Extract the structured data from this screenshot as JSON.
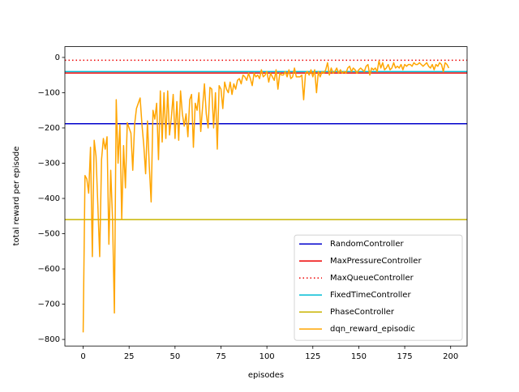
{
  "chart_data": {
    "type": "line",
    "xlabel": "episodes",
    "ylabel": "total reward per episode",
    "xlim": [
      -9.95,
      208.95
    ],
    "ylim": [
      -818.6,
      30.6
    ],
    "xticks": [
      0,
      25,
      50,
      75,
      100,
      125,
      150,
      175,
      200
    ],
    "yticks": [
      {
        "value": -800,
        "label": "−800"
      },
      {
        "value": -700,
        "label": "−700"
      },
      {
        "value": -600,
        "label": "−600"
      },
      {
        "value": -500,
        "label": "−500"
      },
      {
        "value": -400,
        "label": "−400"
      },
      {
        "value": -300,
        "label": "−300"
      },
      {
        "value": -200,
        "label": "−200"
      },
      {
        "value": -100,
        "label": "−100"
      },
      0
    ],
    "legend": "lower right",
    "hlines": [
      {
        "name": "RandomController",
        "color": "#0000cc",
        "y": -188,
        "dash": "solid"
      },
      {
        "name": "MaxPressureController",
        "color": "#ee0000",
        "y": -44,
        "dash": "solid"
      },
      {
        "name": "MaxQueueController",
        "color": "#ee0000",
        "y": -8,
        "dash": "dotted"
      },
      {
        "name": "FixedTimeController",
        "color": "#00bcd4",
        "y": -40,
        "dash": "solid"
      },
      {
        "name": "PhaseController",
        "color": "#c8b400",
        "y": -460,
        "dash": "solid"
      }
    ],
    "x": [
      0,
      1,
      2,
      3,
      4,
      5,
      6,
      7,
      8,
      9,
      10,
      11,
      12,
      13,
      14,
      15,
      16,
      17,
      18,
      19,
      20,
      21,
      22,
      23,
      24,
      25,
      26,
      27,
      28,
      29,
      30,
      31,
      32,
      33,
      34,
      35,
      36,
      37,
      38,
      39,
      40,
      41,
      42,
      43,
      44,
      45,
      46,
      47,
      48,
      49,
      50,
      51,
      52,
      53,
      54,
      55,
      56,
      57,
      58,
      59,
      60,
      61,
      62,
      63,
      64,
      65,
      66,
      67,
      68,
      69,
      70,
      71,
      72,
      73,
      74,
      75,
      76,
      77,
      78,
      79,
      80,
      81,
      82,
      83,
      84,
      85,
      86,
      87,
      88,
      89,
      90,
      91,
      92,
      93,
      94,
      95,
      96,
      97,
      98,
      99,
      100,
      101,
      102,
      103,
      104,
      105,
      106,
      107,
      108,
      109,
      110,
      111,
      112,
      113,
      114,
      115,
      116,
      117,
      118,
      119,
      120,
      121,
      122,
      123,
      124,
      125,
      126,
      127,
      128,
      129,
      130,
      131,
      132,
      133,
      134,
      135,
      136,
      137,
      138,
      139,
      140,
      141,
      142,
      143,
      144,
      145,
      146,
      147,
      148,
      149,
      150,
      151,
      152,
      153,
      154,
      155,
      156,
      157,
      158,
      159,
      160,
      161,
      162,
      163,
      164,
      165,
      166,
      167,
      168,
      169,
      170,
      171,
      172,
      173,
      174,
      175,
      176,
      177,
      178,
      179,
      180,
      181,
      182,
      183,
      184,
      185,
      186,
      187,
      188,
      189,
      190,
      191,
      192,
      193,
      194,
      195,
      196,
      197,
      198,
      199
    ],
    "series": [
      {
        "name": "dqn_reward_episodic",
        "color": "#ffa500",
        "values": [
          -780,
          -335,
          -345,
          -385,
          -255,
          -565,
          -235,
          -280,
          -420,
          -565,
          -290,
          -230,
          -260,
          -225,
          -530,
          -320,
          -460,
          -725,
          -120,
          -300,
          -190,
          -460,
          -250,
          -370,
          -185,
          -200,
          -215,
          -320,
          -190,
          -145,
          -130,
          -115,
          -190,
          -250,
          -330,
          -180,
          -310,
          -410,
          -150,
          -175,
          -130,
          -290,
          -95,
          -240,
          -100,
          -230,
          -95,
          -220,
          -170,
          -105,
          -230,
          -125,
          -235,
          -95,
          -160,
          -195,
          -160,
          -225,
          -120,
          -105,
          -255,
          -130,
          -150,
          -100,
          -210,
          -140,
          -75,
          -160,
          -200,
          -85,
          -90,
          -200,
          -100,
          -260,
          -80,
          -90,
          -145,
          -70,
          -90,
          -100,
          -70,
          -105,
          -75,
          -90,
          -65,
          -60,
          -75,
          -50,
          -55,
          -65,
          -45,
          -60,
          -80,
          -45,
          -55,
          -50,
          -60,
          -35,
          -55,
          -50,
          -40,
          -70,
          -45,
          -55,
          -65,
          -35,
          -90,
          -45,
          -50,
          -50,
          -40,
          -55,
          -35,
          -60,
          -55,
          -30,
          -55,
          -55,
          -55,
          -50,
          -120,
          -45,
          -40,
          -50,
          -35,
          -55,
          -35,
          -100,
          -40,
          -55,
          -40,
          -45,
          -35,
          -15,
          -50,
          -30,
          -45,
          -40,
          -30,
          -45,
          -35,
          -45,
          -40,
          -45,
          -30,
          -25,
          -40,
          -30,
          -35,
          -45,
          -35,
          -30,
          -35,
          -40,
          -25,
          -20,
          -50,
          -30,
          -35,
          -30,
          -40,
          -10,
          -30,
          -15,
          -35,
          -30,
          -20,
          -35,
          -30,
          -15,
          -30,
          -25,
          -30,
          -20,
          -35,
          -20,
          -25,
          -20,
          -20,
          -25,
          -15,
          -20,
          -20,
          -15,
          -20,
          -25,
          -20,
          -15,
          -25,
          -30,
          -20,
          -35,
          -20,
          -25,
          -15,
          -20,
          -40,
          -15,
          -20,
          -30
        ]
      }
    ]
  }
}
